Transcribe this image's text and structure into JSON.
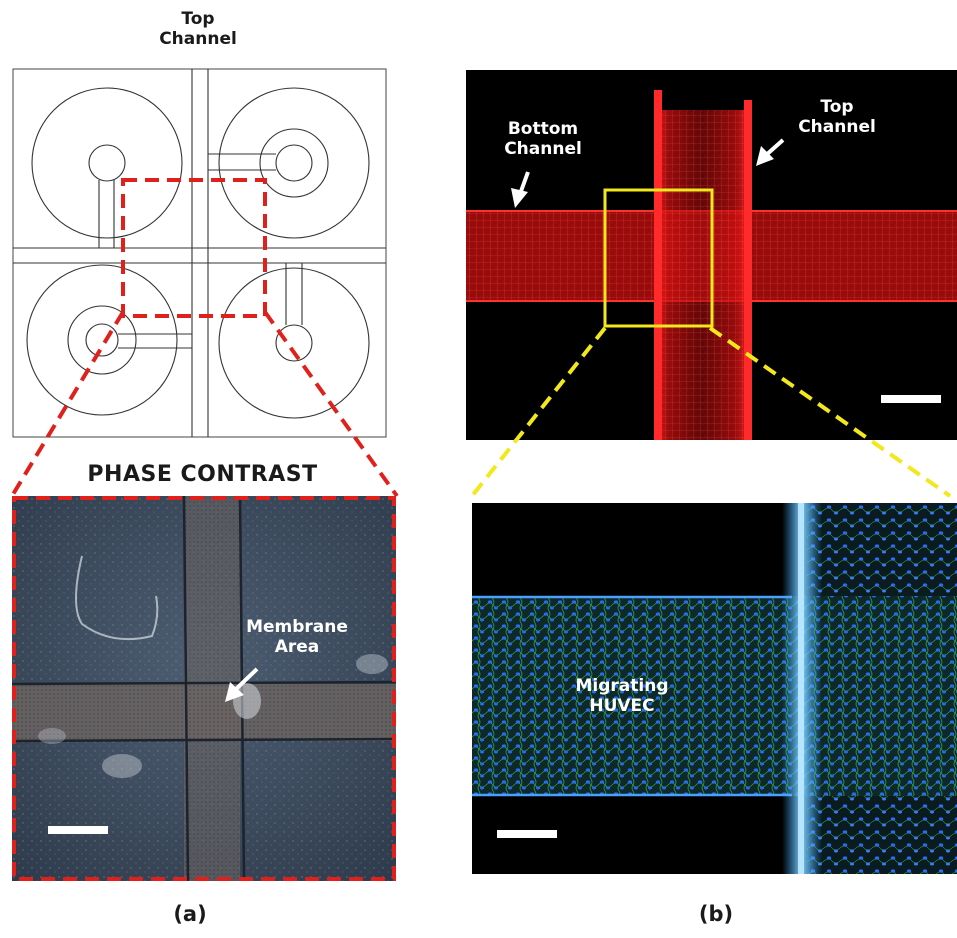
{
  "panel_a": {
    "top_channel_label_line1": "Top",
    "top_channel_label_line2": "Channel",
    "phase_title": "PHASE CONTRAST",
    "membrane_label_line1": "Membrane",
    "membrane_label_line2": "Area",
    "caption": "(a)"
  },
  "panel_b": {
    "bottom_channel_line1": "Bottom",
    "bottom_channel_line2": "Channel",
    "top_channel_line1": "Top",
    "top_channel_line2": "Channel",
    "migrating_line1": "Migrating",
    "migrating_line2": "HUVEC",
    "caption": "(b)"
  },
  "colors": {
    "dashed_red": "#e0201a",
    "yellow_box": "#f2e81c",
    "red_fluor": "#ff1a1a",
    "green_fluor": "#3fcf4a",
    "blue_fluor": "#2d6bff"
  }
}
